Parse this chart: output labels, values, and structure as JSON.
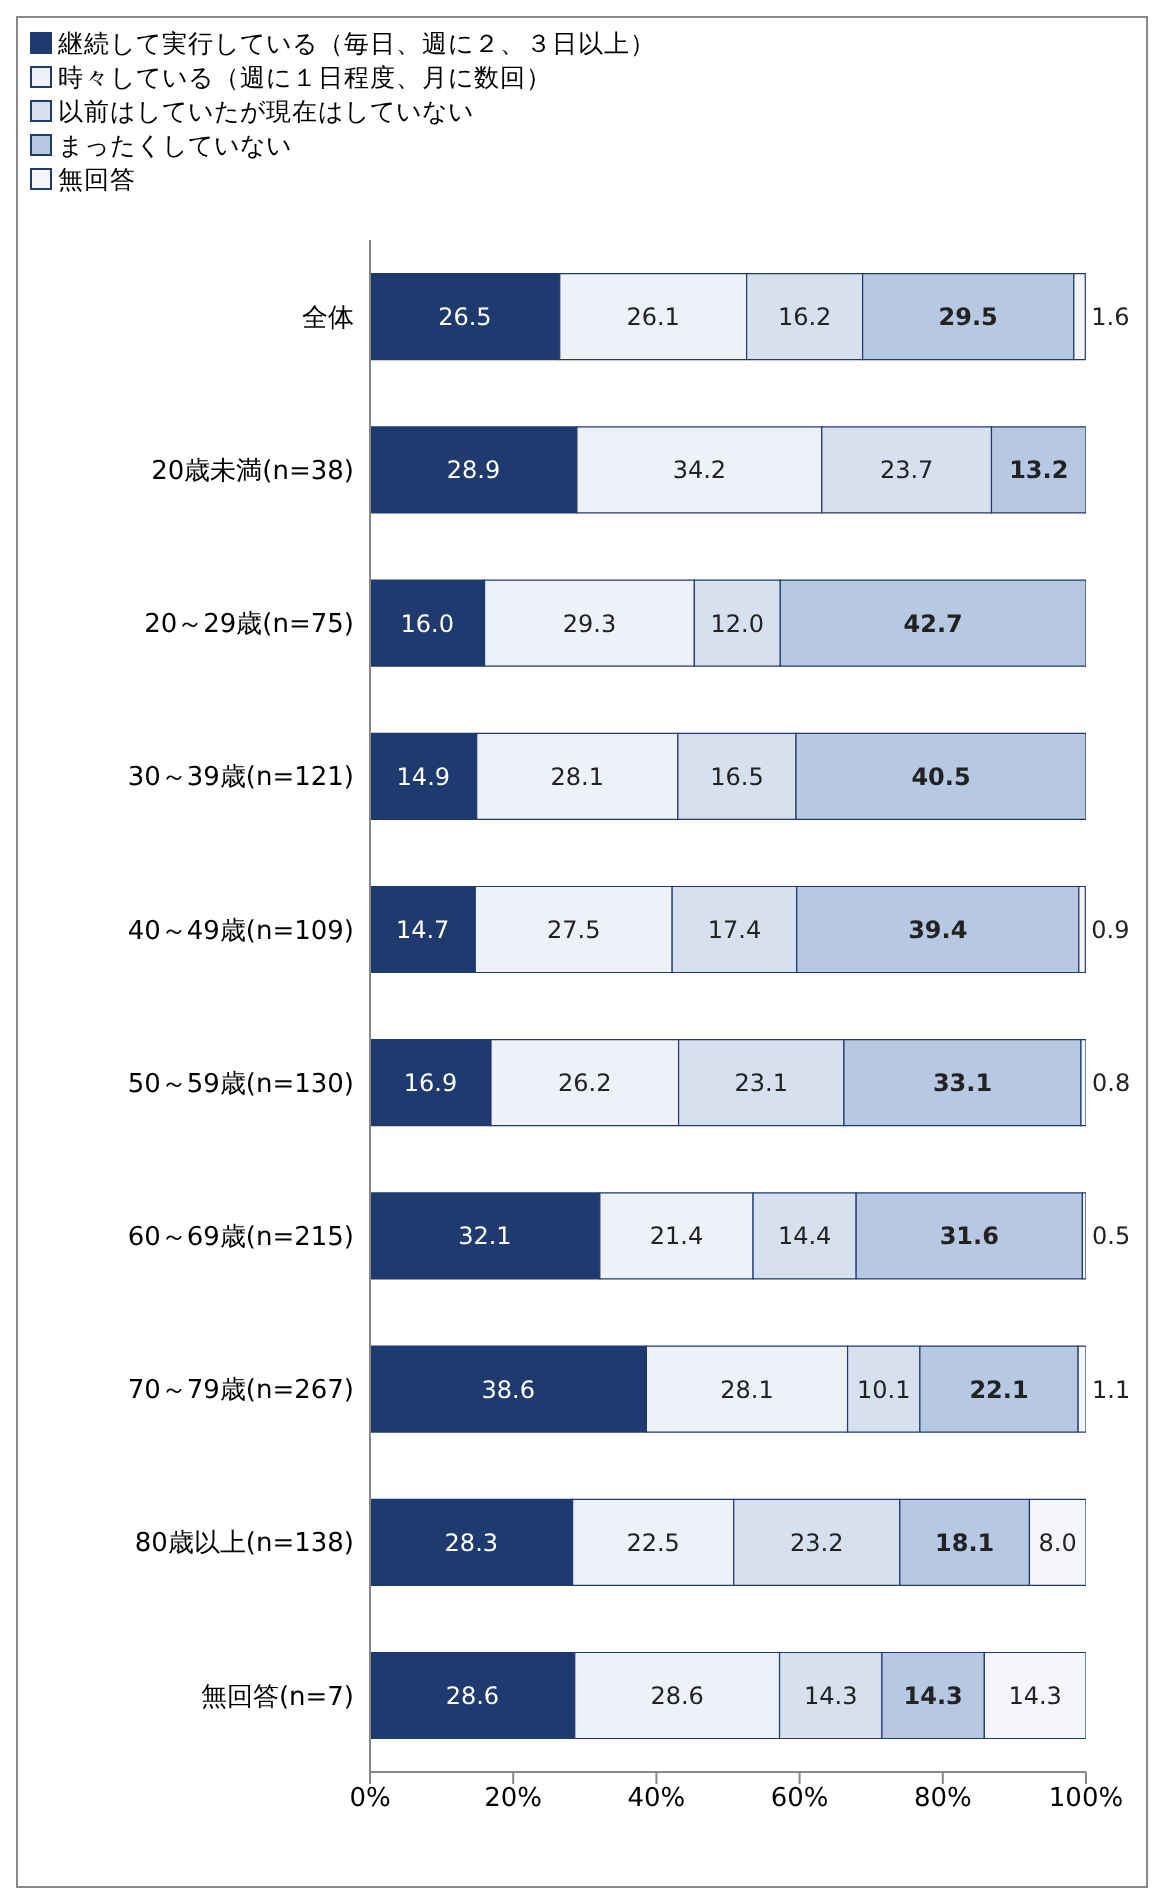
{
  "chart_data": {
    "type": "bar",
    "orientation": "horizontal",
    "stacked": true,
    "legend": "top left",
    "grid": false,
    "categories": [
      "全体",
      "20歳未満(n=38)",
      "20～29歳(n=75)",
      "30～39歳(n=121)",
      "40～49歳(n=109)",
      "50～59歳(n=130)",
      "60～69歳(n=215)",
      "70～79歳(n=267)",
      "80歳以上(n=138)",
      "無回答(n=7)"
    ],
    "xlim": [
      0,
      100
    ],
    "xticks": [
      {
        "value": 0,
        "label": "0%"
      },
      {
        "value": 20,
        "label": "20%"
      },
      {
        "value": 40,
        "label": "40%"
      },
      {
        "value": 60,
        "label": "60%"
      },
      {
        "value": 80,
        "label": "80%"
      },
      {
        "value": 100,
        "label": "100%"
      }
    ],
    "series": [
      {
        "name": "継続して実行している（毎日、週に２、３日以上）",
        "color": "#1f3a6e",
        "values": [
          26.5,
          28.9,
          16.0,
          14.9,
          14.7,
          16.9,
          32.1,
          38.6,
          28.3,
          28.6
        ],
        "value_labels": [
          "26.5",
          "28.9",
          "16.0",
          "14.9",
          "14.7",
          "16.9",
          "32.1",
          "38.6",
          "28.3",
          "28.6"
        ]
      },
      {
        "name": "時々している（週に１日程度、月に数回）",
        "color": "#eef2f8",
        "values": [
          26.1,
          34.2,
          29.3,
          28.1,
          27.5,
          26.2,
          21.4,
          28.1,
          22.5,
          28.6
        ],
        "value_labels": [
          "26.1",
          "34.2",
          "29.3",
          "28.1",
          "27.5",
          "26.2",
          "21.4",
          "28.1",
          "22.5",
          "28.6"
        ]
      },
      {
        "name": "以前はしていたが現在はしていない",
        "color": "#d6e0ee",
        "values": [
          16.2,
          23.7,
          12.0,
          16.5,
          17.4,
          23.1,
          14.4,
          10.1,
          23.2,
          14.3
        ],
        "value_labels": [
          "16.2",
          "23.7",
          "12.0",
          "16.5",
          "17.4",
          "23.1",
          "14.4",
          "10.1",
          "23.2",
          "14.3"
        ]
      },
      {
        "name": "まったくしていない",
        "color": "#b7c8e2",
        "values": [
          29.5,
          13.2,
          42.7,
          40.5,
          39.4,
          33.1,
          31.6,
          22.1,
          18.1,
          14.3
        ],
        "value_labels": [
          "29.5",
          "13.2",
          "42.7",
          "40.5",
          "39.4",
          "33.1",
          "31.6",
          "22.1",
          "18.1",
          "14.3"
        ]
      },
      {
        "name": "無回答",
        "color": "#f4f6fa",
        "values": [
          1.6,
          null,
          null,
          null,
          0.9,
          0.8,
          0.5,
          1.1,
          8.0,
          14.3
        ],
        "value_labels": [
          "1.6",
          null,
          null,
          null,
          "0.9",
          "0.8",
          "0.5",
          "1.1",
          "8.0",
          "14.3"
        ]
      }
    ]
  }
}
